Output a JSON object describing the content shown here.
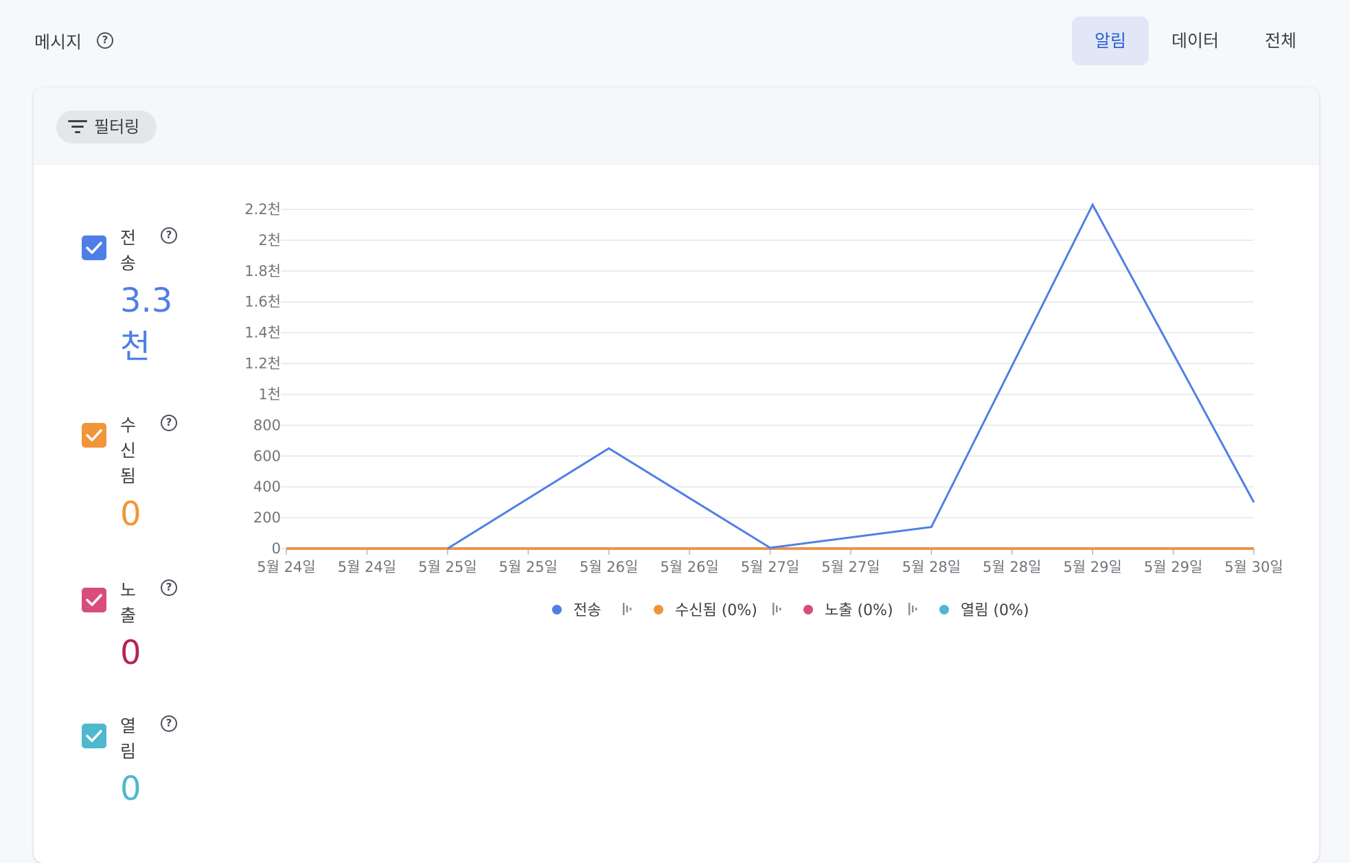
{
  "header": {
    "title": "메시지",
    "segments": [
      "알림",
      "데이터",
      "전체"
    ],
    "selected_segment": "알림"
  },
  "toolbar": {
    "filter_label": "필터링"
  },
  "metrics": [
    {
      "label": "전송",
      "value": "3.3천",
      "color": "#4f7fe6",
      "checked": true
    },
    {
      "label": "수신됨",
      "value": "0",
      "color": "#f1953a",
      "checked": true
    },
    {
      "label": "노출",
      "value": "0",
      "color": "#d94d7c",
      "checked": true
    },
    {
      "label": "열림",
      "value": "0",
      "color": "#4fb8cc",
      "checked": true
    }
  ],
  "icons": {
    "help": "help-circle-icon",
    "filter": "filter-lines-icon",
    "check": "check-icon",
    "legend_separator": "separator-icon"
  },
  "chart_data": {
    "type": "line",
    "x": [
      "5월 24일",
      "5월 24일",
      "5월 25일",
      "5월 25일",
      "5월 26일",
      "5월 26일",
      "5월 27일",
      "5월 27일",
      "5월 28일",
      "5월 28일",
      "5월 29일",
      "5월 29일",
      "5월 30일"
    ],
    "y_ticks": [
      "0",
      "200",
      "400",
      "600",
      "800",
      "1천",
      "1.2천",
      "1.4천",
      "1.6천",
      "1.8천",
      "2천",
      "2.2천"
    ],
    "ylim": [
      0,
      2200
    ],
    "grid": true,
    "legend_position": "bottom",
    "series": [
      {
        "name": "전송",
        "legend": "전송",
        "color": "#4f7fe6",
        "points": [
          [
            2,
            0
          ],
          [
            4,
            650
          ],
          [
            6,
            5
          ],
          [
            8,
            140
          ],
          [
            10,
            2230
          ],
          [
            12,
            300
          ]
        ]
      },
      {
        "name": "수신됨",
        "legend": "수신됨 (0%)",
        "color": "#f1953a",
        "points": [
          [
            0,
            0
          ],
          [
            12,
            0
          ]
        ]
      },
      {
        "name": "노출",
        "legend": "노출 (0%)",
        "color": "#d94d7c",
        "points": [
          [
            0,
            0
          ],
          [
            12,
            0
          ]
        ]
      },
      {
        "name": "열림",
        "legend": "열림 (0%)",
        "color": "#4fb8cc",
        "points": [
          [
            0,
            0
          ],
          [
            12,
            0
          ]
        ]
      }
    ]
  }
}
